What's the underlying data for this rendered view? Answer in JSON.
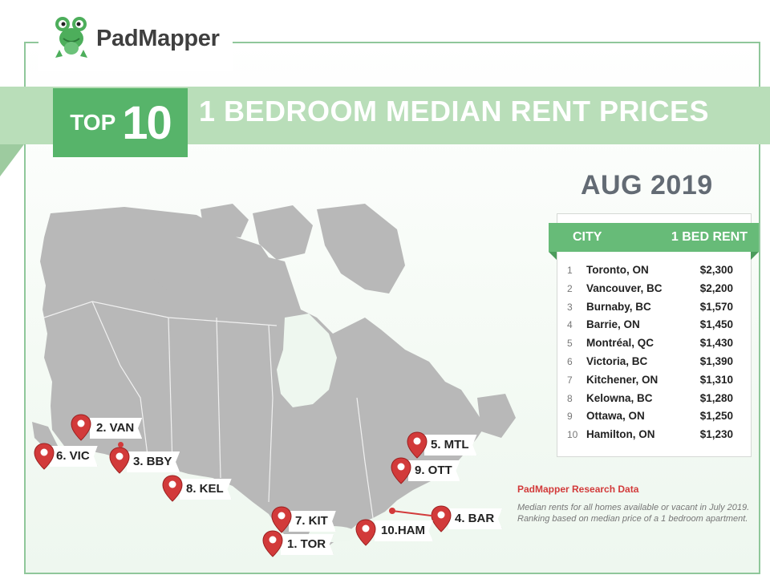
{
  "brand": {
    "name": "PadMapper",
    "logo_icon": "frog-icon",
    "colors": {
      "green": "#57b46a",
      "light_green": "#b9deb9",
      "pin_red": "#d23a3a"
    }
  },
  "banner": {
    "top_word": "TOP",
    "top_number": "10",
    "title": "1 BEDROOM MEDIAN RENT PRICES"
  },
  "date": "AUG 2019",
  "table": {
    "headers": {
      "city": "CITY",
      "rent": "1 BED RENT"
    },
    "rows": [
      {
        "rank": "1",
        "city": "Toronto, ON",
        "rent": "$2,300"
      },
      {
        "rank": "2",
        "city": "Vancouver, BC",
        "rent": "$2,200"
      },
      {
        "rank": "3",
        "city": "Burnaby, BC",
        "rent": "$1,570"
      },
      {
        "rank": "4",
        "city": "Barrie, ON",
        "rent": "$1,450"
      },
      {
        "rank": "5",
        "city": "Montréal, QC",
        "rent": "$1,430"
      },
      {
        "rank": "6",
        "city": "Victoria, BC",
        "rent": "$1,390"
      },
      {
        "rank": "7",
        "city": "Kitchener, ON",
        "rent": "$1,310"
      },
      {
        "rank": "8",
        "city": "Kelowna, BC",
        "rent": "$1,280"
      },
      {
        "rank": "9",
        "city": "Ottawa, ON",
        "rent": "$1,250"
      },
      {
        "rank": "10",
        "city": "Hamilton, ON",
        "rent": "$1,230"
      }
    ]
  },
  "research": {
    "title": "PadMapper Research Data",
    "note": "Median rents for all homes available or vacant in July 2019. Ranking based on median price of a 1 bedroom apartment."
  },
  "map": {
    "icon": "canada-map",
    "pins": [
      {
        "label": "2. VAN"
      },
      {
        "label": "6. VIC"
      },
      {
        "label": "3. BBY"
      },
      {
        "label": "8. KEL"
      },
      {
        "label": "5. MTL"
      },
      {
        "label": "9. OTT"
      },
      {
        "label": "4. BAR"
      },
      {
        "label": "7. KIT"
      },
      {
        "label": "10.HAM"
      },
      {
        "label": "1. TOR"
      }
    ]
  }
}
